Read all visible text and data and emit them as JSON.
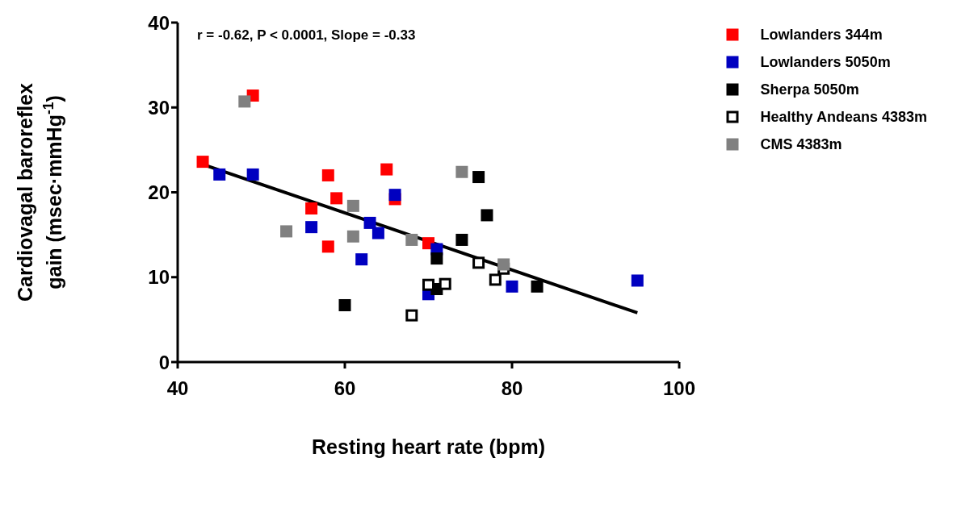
{
  "chart_data": {
    "type": "scatter",
    "xlabel": "Resting heart rate (bpm)",
    "ylabel": "Cardiovagal baroreflex gain (msec·mmHg$^{-1}$)",
    "annotations": [
      "r = -0.62,  P < 0.0001, Slope = -0.33"
    ],
    "xlim": [
      40,
      100
    ],
    "xticks": [
      40,
      60,
      80,
      100
    ],
    "ylim": [
      0,
      40
    ],
    "yticks": [
      0,
      10,
      20,
      30,
      40
    ],
    "legend": "top right",
    "marker": "square",
    "series": [
      {
        "name": "Lowlanders 344m",
        "color": "#ff0000",
        "x": [
          43,
          49,
          56,
          58,
          58,
          59,
          65,
          66,
          70
        ],
        "values": [
          23.6,
          31.4,
          18.1,
          22.0,
          13.6,
          19.3,
          22.7,
          19.2,
          14.0
        ]
      },
      {
        "name": "Lowlanders 5050m",
        "color": "#0000c0",
        "x": [
          45,
          49,
          56,
          62,
          63,
          64,
          66,
          70,
          71,
          80,
          95
        ],
        "values": [
          22.1,
          22.1,
          15.9,
          12.1,
          16.4,
          15.2,
          19.7,
          8.0,
          13.3,
          8.9,
          9.6
        ]
      },
      {
        "name": "Sherpa 5050m",
        "color": "#000000",
        "x": [
          60,
          71,
          71,
          74,
          76,
          77,
          83
        ],
        "values": [
          6.7,
          8.6,
          12.2,
          14.4,
          21.8,
          17.3,
          8.9
        ]
      },
      {
        "name": "Healthy Andeans 4383m",
        "color": "#ffffff",
        "x": [
          68,
          70,
          72,
          76,
          78,
          79
        ],
        "values": [
          5.5,
          9.1,
          9.2,
          11.7,
          9.7,
          11.0
        ]
      },
      {
        "name": "CMS 4383m",
        "color": "#808080",
        "x": [
          48,
          53,
          61,
          61,
          68,
          74,
          79
        ],
        "values": [
          30.7,
          15.4,
          18.4,
          14.8,
          14.4,
          22.4,
          11.5
        ]
      },
      {
        "type": "line",
        "color": "#000000",
        "marker": "none",
        "line_style": "solid",
        "x": [
          43,
          95
        ],
        "values": [
          23.3,
          5.8
        ]
      }
    ]
  }
}
